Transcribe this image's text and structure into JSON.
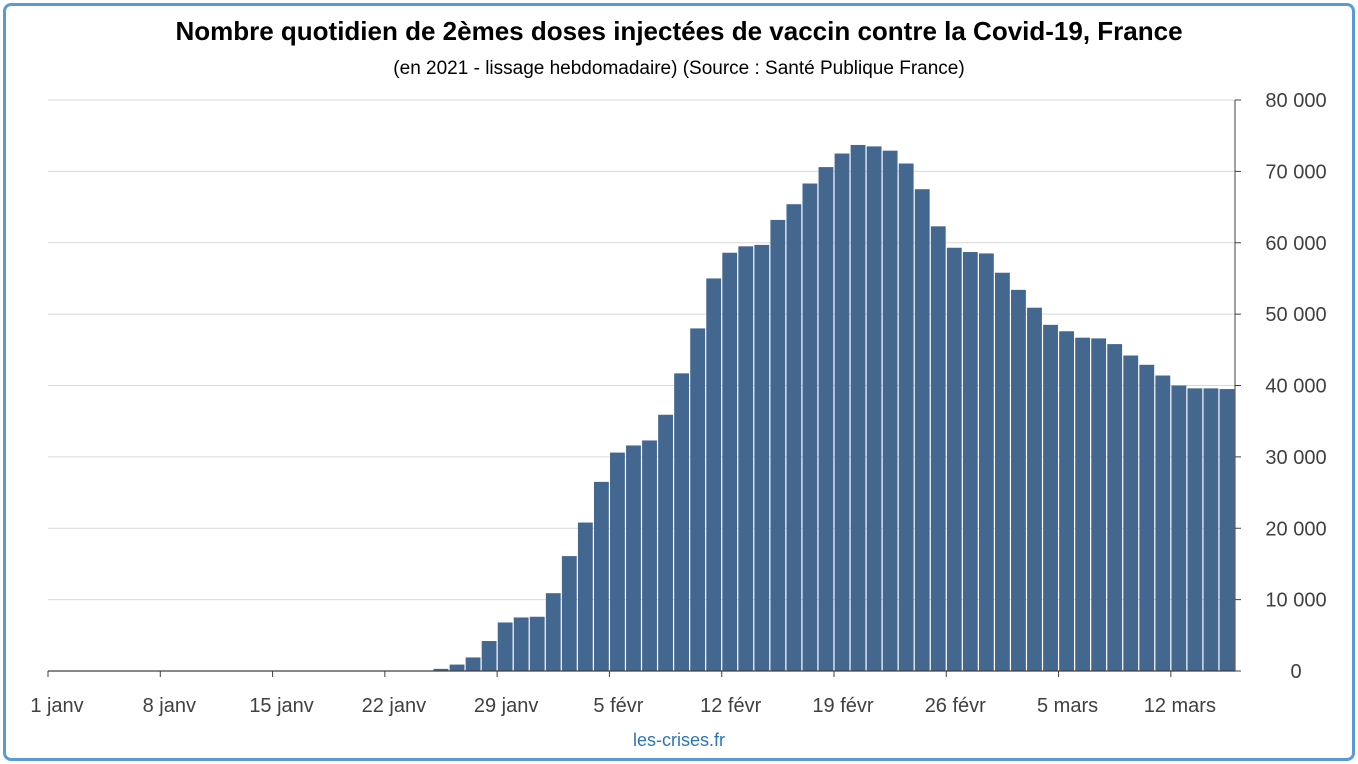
{
  "title": "Nombre quotidien de 2èmes doses injectées de vaccin contre la Covid-19, France",
  "subtitle": "(en 2021 - lissage hebdomadaire) (Source : Santé Publique France)",
  "source_label": "les-crises.fr",
  "colors": {
    "bar": "#44678f",
    "frame": "#5b9bd5",
    "grid": "#d9d9d9",
    "axis": "#404040",
    "source": "#2e75b6"
  },
  "chart_data": {
    "type": "bar",
    "title": "Nombre quotidien de 2èmes doses injectées de vaccin contre la Covid-19, France",
    "subtitle": "(en 2021 - lissage hebdomadaire) (Source : Santé Publique France)",
    "xlabel": "",
    "ylabel": "",
    "ylim": [
      0,
      80000
    ],
    "y_axis_position": "right",
    "y_ticks": [
      0,
      10000,
      20000,
      30000,
      40000,
      50000,
      60000,
      70000,
      80000
    ],
    "y_tick_labels": [
      "0",
      "10 000",
      "20 000",
      "30 000",
      "40 000",
      "50 000",
      "60 000",
      "70 000",
      "80 000"
    ],
    "x_tick_labels": [
      "1 janv",
      "8 janv",
      "15 janv",
      "22 janv",
      "29 janv",
      "5 févr",
      "12 févr",
      "19 févr",
      "26 févr",
      "5 mars",
      "12 mars"
    ],
    "x_tick_dates": [
      "2021-01-01",
      "2021-01-08",
      "2021-01-15",
      "2021-01-22",
      "2021-01-29",
      "2021-02-05",
      "2021-02-12",
      "2021-02-19",
      "2021-02-26",
      "2021-03-05",
      "2021-03-12"
    ],
    "grid": true,
    "legend": "none",
    "dates": [
      "2021-01-01",
      "2021-01-02",
      "2021-01-03",
      "2021-01-04",
      "2021-01-05",
      "2021-01-06",
      "2021-01-07",
      "2021-01-08",
      "2021-01-09",
      "2021-01-10",
      "2021-01-11",
      "2021-01-12",
      "2021-01-13",
      "2021-01-14",
      "2021-01-15",
      "2021-01-16",
      "2021-01-17",
      "2021-01-18",
      "2021-01-19",
      "2021-01-20",
      "2021-01-21",
      "2021-01-22",
      "2021-01-23",
      "2021-01-24",
      "2021-01-25",
      "2021-01-26",
      "2021-01-27",
      "2021-01-28",
      "2021-01-29",
      "2021-01-30",
      "2021-01-31",
      "2021-02-01",
      "2021-02-02",
      "2021-02-03",
      "2021-02-04",
      "2021-02-05",
      "2021-02-06",
      "2021-02-07",
      "2021-02-08",
      "2021-02-09",
      "2021-02-10",
      "2021-02-11",
      "2021-02-12",
      "2021-02-13",
      "2021-02-14",
      "2021-02-15",
      "2021-02-16",
      "2021-02-17",
      "2021-02-18",
      "2021-02-19",
      "2021-02-20",
      "2021-02-21",
      "2021-02-22",
      "2021-02-23",
      "2021-02-24",
      "2021-02-25",
      "2021-02-26",
      "2021-02-27",
      "2021-02-28",
      "2021-03-01",
      "2021-03-02",
      "2021-03-03",
      "2021-03-04",
      "2021-03-05",
      "2021-03-06",
      "2021-03-07",
      "2021-03-08",
      "2021-03-09",
      "2021-03-10",
      "2021-03-11",
      "2021-03-12",
      "2021-03-13",
      "2021-03-14",
      "2021-03-15"
    ],
    "values": [
      0,
      0,
      0,
      0,
      0,
      0,
      0,
      0,
      0,
      0,
      0,
      0,
      0,
      0,
      0,
      0,
      0,
      0,
      0,
      0,
      0,
      0,
      0,
      0,
      300,
      900,
      1900,
      4200,
      6800,
      7500,
      7600,
      10900,
      16100,
      20800,
      26500,
      30600,
      31600,
      32300,
      35900,
      41700,
      48000,
      55000,
      58600,
      59500,
      59700,
      63200,
      65400,
      68300,
      70600,
      72500,
      73700,
      73500,
      72900,
      71100,
      67500,
      62300,
      59300,
      58700,
      58500,
      55800,
      53400,
      50900,
      48500,
      47600,
      46700,
      46600,
      45800,
      44200,
      42900,
      41400,
      40000,
      39600,
      39600,
      39500
    ]
  }
}
